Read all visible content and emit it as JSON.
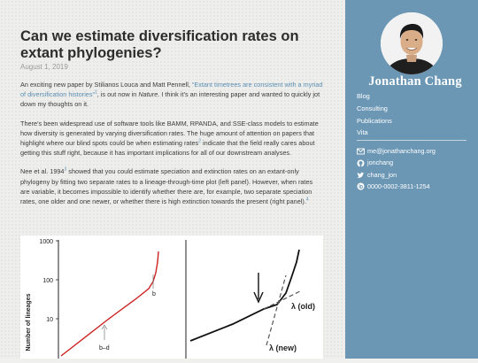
{
  "post": {
    "title": "Can we estimate diversification rates on extant phylogenies?",
    "date": "August 1, 2019",
    "p1": {
      "before": "An exciting new paper by Stilianos Louca and Matt Pennell, ",
      "link": "“Extant timetrees are consistent with a myriad of diversification histories”",
      "sup": "1",
      "after1": ", is out now in ",
      "journal": "Nature",
      "after2": ". I think it’s an interesting paper and wanted to quickly jot down my thoughts on it."
    },
    "p2": {
      "before": "There’s been widespread use of software tools like BAMM, RPANDA, and SSE-class models to estimate how diversity is generated by varying diversification rates. The huge amount of attention on papers that highlight where our blind spots could be when estimating rates",
      "sup": "2",
      "after": " indicate that the field really cares about getting this stuff right, because it has important implications for all of our downstream analyses."
    },
    "p3": {
      "before": "Nee et al. 1994",
      "sup": "3",
      "middle": " showed that you could estimate speciation and extinction rates on an extant-only phylogeny by fitting two separate rates to a lineage-through-time plot (left panel). However, when rates are variable, it becomes impossible to identify whether there are, for example, two separate speciation rates, one older and one newer, or whether there is high extinction towards the present (right panel).",
      "sup2": "4"
    }
  },
  "figure": {
    "left_panel": {
      "ylabel": "Number of lineages",
      "yticks": [
        "1000",
        "100",
        "10"
      ],
      "label_b": "b",
      "label_bd": "b–d"
    },
    "right_panel": {
      "label_old": "λ (old)",
      "label_new": "λ (new)"
    }
  },
  "sidebar": {
    "name": "Jonathan Chang",
    "nav": [
      "Blog",
      "Consulting",
      "Publications",
      "Vita"
    ],
    "contacts": [
      {
        "icon": "mail-icon",
        "text": "me@jonathanchang.org"
      },
      {
        "icon": "github-icon",
        "text": "jonchang"
      },
      {
        "icon": "twitter-icon",
        "text": "chang_jon"
      },
      {
        "icon": "orcid-icon",
        "text": "0000-0002-3811-1254"
      }
    ]
  },
  "colors": {
    "sidebar": "#6b97b5",
    "link": "#5b8fb2",
    "curve": "#cc2222"
  }
}
